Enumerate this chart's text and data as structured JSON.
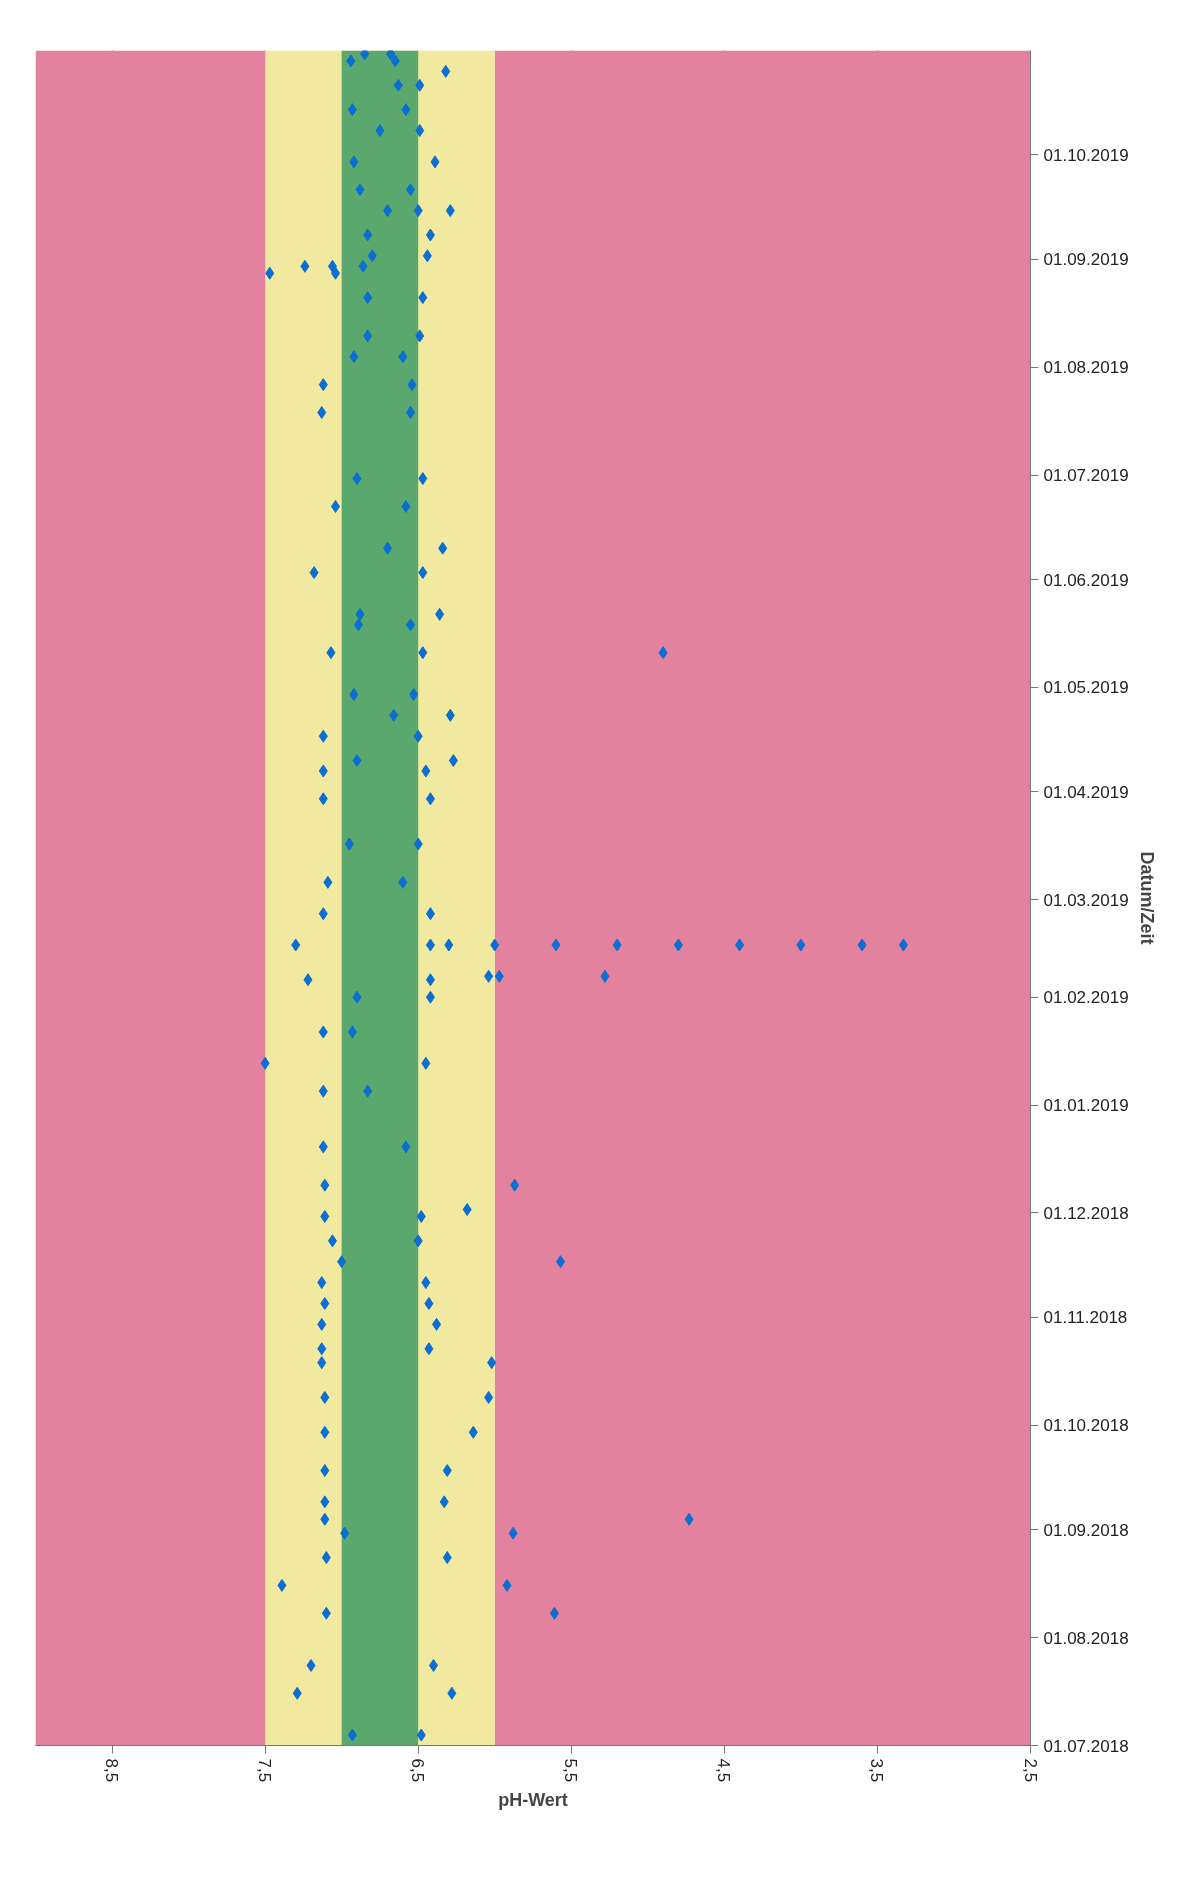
{
  "chart_data": {
    "type": "scatter",
    "xlabel": "pH-Wert",
    "ylabel": "Datum/Zeit",
    "xlim": [
      9.0,
      2.5
    ],
    "xticks": [
      {
        "value": 8.5,
        "label": "8,5"
      },
      {
        "value": 7.5,
        "label": "7,5"
      },
      {
        "value": 6.5,
        "label": "6,5"
      },
      {
        "value": 5.5,
        "label": "5,5"
      },
      {
        "value": 4.5,
        "label": "4,5"
      },
      {
        "value": 3.5,
        "label": "3,5"
      },
      {
        "value": 2.5,
        "label": "2,5"
      }
    ],
    "ylim": [
      "2018-07-01",
      "2019-10-31"
    ],
    "yticks": [
      {
        "value": "2018-07-01",
        "label": "01.07.2018"
      },
      {
        "value": "2018-08-01",
        "label": "01.08.2018"
      },
      {
        "value": "2018-09-01",
        "label": "01.09.2018"
      },
      {
        "value": "2018-10-01",
        "label": "01.10.2018"
      },
      {
        "value": "2018-11-01",
        "label": "01.11.2018"
      },
      {
        "value": "2018-12-01",
        "label": "01.12.2018"
      },
      {
        "value": "2019-01-01",
        "label": "01.01.2019"
      },
      {
        "value": "2019-02-01",
        "label": "01.02.2019"
      },
      {
        "value": "2019-03-01",
        "label": "01.03.2019"
      },
      {
        "value": "2019-04-01",
        "label": "01.04.2019"
      },
      {
        "value": "2019-05-01",
        "label": "01.05.2019"
      },
      {
        "value": "2019-06-01",
        "label": "01.06.2019"
      },
      {
        "value": "2019-07-01",
        "label": "01.07.2019"
      },
      {
        "value": "2019-08-01",
        "label": "01.08.2019"
      },
      {
        "value": "2019-09-01",
        "label": "01.09.2019"
      },
      {
        "value": "2019-10-01",
        "label": "01.10.2019"
      }
    ],
    "grid": "x",
    "marker": "diamond",
    "orientation": "horizontal",
    "bands": [
      {
        "axis": "x",
        "from": 2.5,
        "to": 6.0,
        "color": "#e2829f"
      },
      {
        "axis": "x",
        "from": 7.5,
        "to": 9.0,
        "color": "#e2829f"
      },
      {
        "axis": "x",
        "from": 6.0,
        "to": 7.5,
        "color": "#f2e9a0"
      },
      {
        "axis": "x",
        "from": 6.5,
        "to": 7.0,
        "color": "#5aa86e"
      }
    ],
    "series": [
      {
        "color": "#0a6ed2",
        "x": [
          "2018-07-04",
          "2018-07-04",
          "2018-07-16",
          "2018-07-16",
          "2018-07-24",
          "2018-07-24",
          "2018-08-08",
          "2018-08-08",
          "2018-08-16",
          "2018-08-16",
          "2018-08-24",
          "2018-08-24",
          "2018-08-31",
          "2018-08-31",
          "2018-09-04",
          "2018-09-04",
          "2018-09-09",
          "2018-09-09",
          "2018-09-18",
          "2018-09-18",
          "2018-09-29",
          "2018-09-29",
          "2018-10-09",
          "2018-10-09",
          "2018-10-19",
          "2018-10-19",
          "2018-10-23",
          "2018-10-23",
          "2018-10-30",
          "2018-10-30",
          "2018-11-05",
          "2018-11-05",
          "2018-11-11",
          "2018-11-11",
          "2018-11-17",
          "2018-11-17",
          "2018-11-23",
          "2018-11-23",
          "2018-11-30",
          "2018-11-30",
          "2018-12-02",
          "2018-12-09",
          "2018-12-09",
          "2018-12-20",
          "2018-12-20",
          "2019-01-05",
          "2019-01-05",
          "2019-01-13",
          "2019-01-13",
          "2019-01-22",
          "2019-01-22",
          "2019-02-01",
          "2019-02-01",
          "2019-02-06",
          "2019-02-06",
          "2019-02-07",
          "2019-02-07",
          "2019-02-07",
          "2019-02-16",
          "2019-02-16",
          "2019-02-16",
          "2019-02-16",
          "2019-02-16",
          "2019-02-16",
          "2019-02-16",
          "2019-02-16",
          "2019-02-16",
          "2019-02-16",
          "2019-02-16",
          "2019-02-25",
          "2019-02-25",
          "2019-03-06",
          "2019-03-06",
          "2019-03-17",
          "2019-03-17",
          "2019-03-30",
          "2019-03-30",
          "2019-04-07",
          "2019-04-07",
          "2019-04-10",
          "2019-04-10",
          "2019-04-17",
          "2019-04-17",
          "2019-04-23",
          "2019-04-23",
          "2019-04-29",
          "2019-04-29",
          "2019-05-11",
          "2019-05-11",
          "2019-05-11",
          "2019-05-19",
          "2019-05-19",
          "2019-05-22",
          "2019-05-22",
          "2019-06-03",
          "2019-06-03",
          "2019-06-10",
          "2019-06-10",
          "2019-06-22",
          "2019-06-22",
          "2019-06-30",
          "2019-06-30",
          "2019-07-19",
          "2019-07-19",
          "2019-07-27",
          "2019-07-27",
          "2019-08-04",
          "2019-08-04",
          "2019-08-10",
          "2019-08-10",
          "2019-08-21",
          "2019-08-21",
          "2019-08-28",
          "2019-08-28",
          "2019-08-30",
          "2019-08-30",
          "2019-08-30",
          "2019-09-02",
          "2019-09-02",
          "2019-09-08",
          "2019-09-08",
          "2019-09-15",
          "2019-09-15",
          "2019-09-15",
          "2019-09-21",
          "2019-09-21",
          "2019-09-29",
          "2019-09-29",
          "2019-10-08",
          "2019-10-08",
          "2019-10-14",
          "2019-10-14",
          "2019-10-21",
          "2019-10-21",
          "2019-10-25",
          "2019-10-28",
          "2019-10-28",
          "2019-10-30",
          "2019-10-30"
        ],
        "values": [
          6.93,
          6.48,
          7.29,
          6.28,
          7.2,
          6.4,
          7.1,
          5.61,
          7.39,
          5.92,
          7.1,
          6.31,
          6.98,
          5.88,
          7.11,
          4.73,
          7.11,
          6.33,
          7.11,
          6.31,
          7.11,
          6.14,
          7.11,
          6.04,
          7.13,
          6.02,
          7.13,
          6.43,
          7.13,
          6.38,
          7.11,
          6.43,
          7.13,
          6.45,
          7.0,
          5.57,
          7.06,
          6.5,
          7.11,
          6.48,
          6.18,
          7.11,
          5.87,
          7.12,
          6.58,
          7.12,
          6.83,
          7.5,
          6.45,
          7.12,
          6.93,
          6.9,
          6.42,
          7.22,
          6.42,
          6.04,
          5.97,
          5.28,
          7.3,
          6.42,
          6.3,
          6.0,
          5.6,
          5.2,
          4.8,
          4.4,
          4.0,
          3.6,
          3.33,
          7.12,
          6.42,
          7.09,
          6.6,
          6.95,
          6.5,
          7.12,
          6.42,
          7.12,
          6.45,
          6.9,
          6.27,
          7.12,
          6.5,
          6.66,
          6.29,
          6.92,
          6.53,
          7.07,
          6.47,
          4.9,
          6.89,
          6.55,
          6.88,
          6.36,
          7.18,
          6.47,
          6.7,
          6.34,
          7.04,
          6.58,
          6.9,
          6.47,
          7.13,
          6.55,
          7.12,
          6.54,
          6.92,
          6.6,
          6.83,
          6.49,
          6.83,
          6.47,
          7.47,
          7.04,
          7.24,
          7.06,
          6.86,
          6.8,
          6.44,
          6.83,
          6.42,
          6.7,
          6.5,
          6.29,
          6.88,
          6.55,
          6.92,
          6.39,
          6.75,
          6.49,
          6.93,
          6.58,
          6.63,
          6.49,
          6.32,
          6.94,
          6.65,
          6.85,
          6.68
        ]
      }
    ]
  }
}
